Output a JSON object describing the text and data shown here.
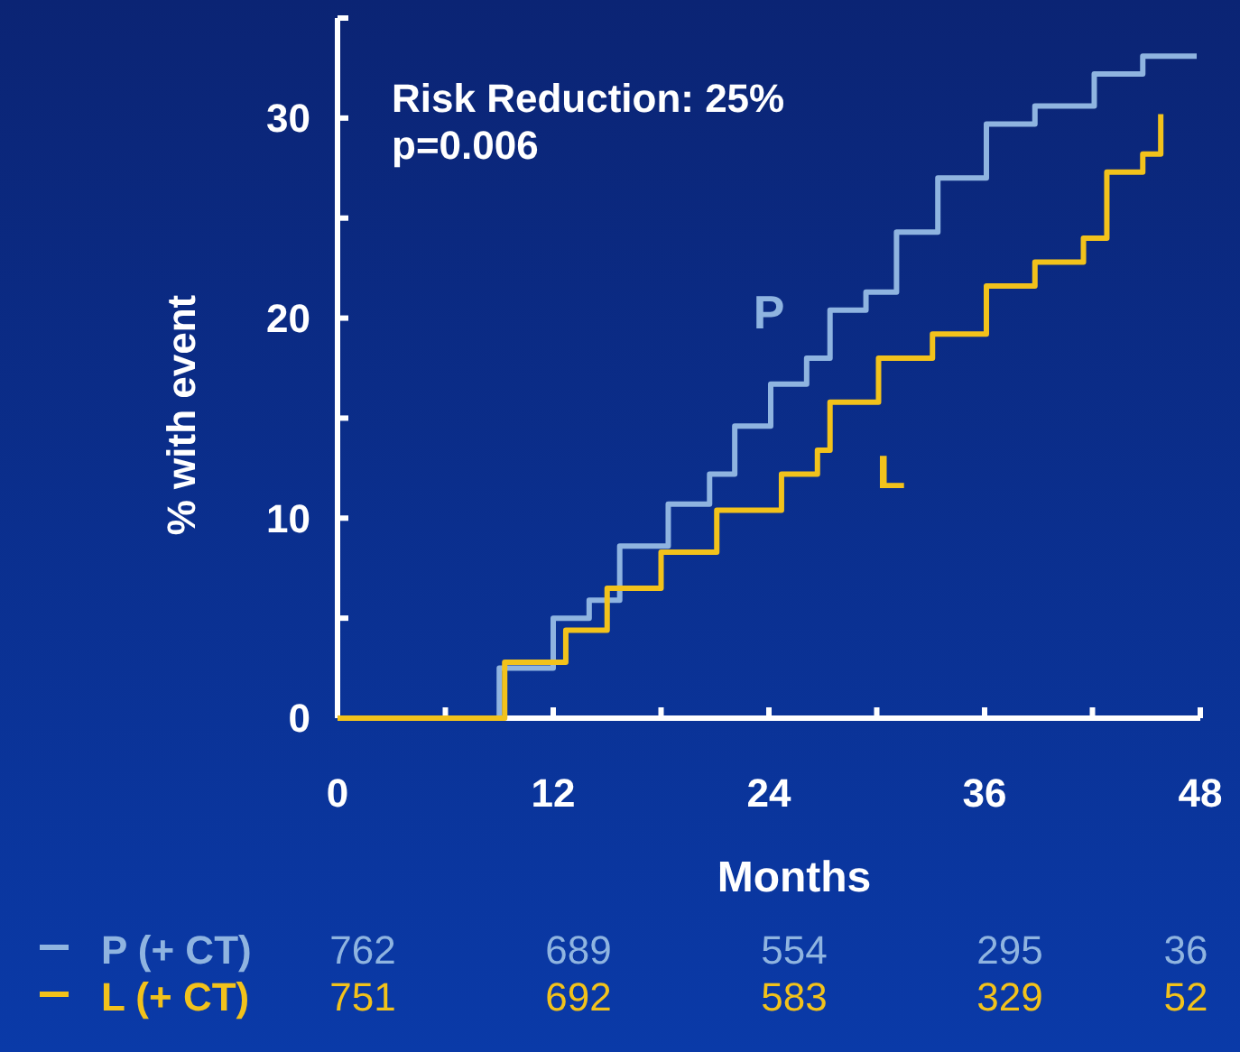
{
  "chart_data": {
    "type": "step",
    "xlabel": "Months",
    "ylabel": "% with event",
    "xlim": [
      0,
      48
    ],
    "xticks": [
      0,
      {
        "value": 6,
        "label": null
      },
      12,
      {
        "value": 18,
        "label": null
      },
      24,
      {
        "value": 30,
        "label": null
      },
      36,
      {
        "value": 42,
        "label": null
      },
      48
    ],
    "ylim": [
      0,
      35
    ],
    "yticks": [
      0,
      {
        "value": 5,
        "label": null
      },
      10,
      {
        "value": 15,
        "label": null
      },
      20,
      {
        "value": 25,
        "label": null
      },
      30,
      {
        "value": 35,
        "label": null
      }
    ],
    "grid": false,
    "marker": "none",
    "line_style": "solid",
    "series": [
      {
        "name": "P",
        "color": "#8fb4e0",
        "x": [
          0,
          5.3,
          9.0,
          12.0,
          14.0,
          15.7,
          18.4,
          20.7,
          22.1,
          24.1,
          26.1,
          27.4,
          29.4,
          31.1,
          33.4,
          36.1,
          38.8,
          42.1,
          44.8,
          47.8
        ],
        "values": [
          0,
          0,
          2.5,
          5.0,
          5.9,
          8.6,
          10.7,
          12.2,
          14.6,
          16.7,
          18.0,
          20.4,
          21.3,
          24.3,
          27.0,
          29.7,
          30.6,
          32.2,
          33.1,
          33.1
        ]
      },
      {
        "name": "L",
        "color": "#f2c21b",
        "x": [
          0,
          5.9,
          9.3,
          12.7,
          15.0,
          18.0,
          21.1,
          24.7,
          26.7,
          27.4,
          30.1,
          33.1,
          36.1,
          38.8,
          41.5,
          42.8,
          44.8,
          45.8
        ],
        "values": [
          0,
          0,
          2.8,
          4.4,
          6.5,
          8.3,
          10.4,
          12.2,
          13.4,
          15.8,
          18.0,
          19.2,
          21.6,
          22.8,
          24.0,
          27.3,
          28.2,
          30.2
        ]
      }
    ],
    "annotations": [
      "Risk Reduction: 25%",
      "p=0.006",
      "P (+ CT)",
      "762",
      "689",
      "554",
      "295",
      "36",
      "L (+ CT)",
      "751",
      "692",
      "583",
      "329",
      "52"
    ]
  }
}
